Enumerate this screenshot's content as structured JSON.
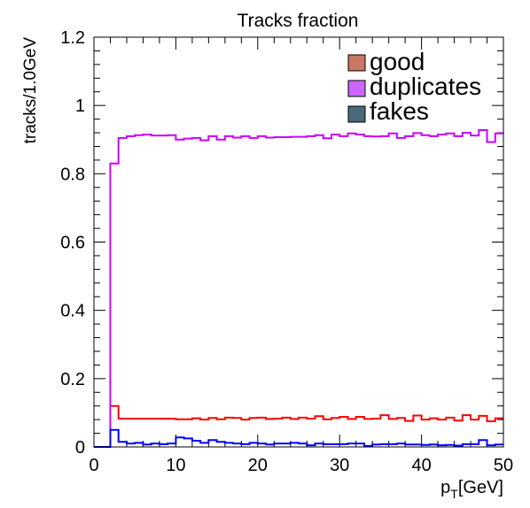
{
  "chart_data": {
    "type": "line",
    "title": "Tracks fraction",
    "xlabel_main": "p",
    "xlabel_sub": "T",
    "xlabel_unit": "[GeV]",
    "ylabel": "tracks/1.0GeV",
    "xlim": [
      0,
      50
    ],
    "ylim": [
      0,
      1.2
    ],
    "xticks": [
      0,
      10,
      20,
      30,
      40,
      50
    ],
    "xtick_labels": [
      "0",
      "10",
      "20",
      "30",
      "40",
      "50"
    ],
    "yticks": [
      0,
      0.2,
      0.4,
      0.6,
      0.8,
      1,
      1.2
    ],
    "ytick_labels": [
      "0",
      "0.2",
      "0.4",
      "0.6",
      "0.8",
      "1",
      "1.2"
    ],
    "bin_edges": [
      0,
      1,
      2,
      3,
      4,
      5,
      6,
      7,
      8,
      9,
      10,
      11,
      12,
      13,
      14,
      15,
      16,
      17,
      18,
      19,
      20,
      21,
      22,
      23,
      24,
      25,
      26,
      27,
      28,
      29,
      30,
      31,
      32,
      33,
      34,
      35,
      36,
      37,
      38,
      39,
      40,
      41,
      42,
      43,
      44,
      45,
      46,
      47,
      48,
      49,
      50
    ],
    "grid": false,
    "legend_position": "top-right",
    "series": [
      {
        "name": "good",
        "color": "#ff0000",
        "values": [
          0,
          0,
          0.12,
          0.083,
          0.083,
          0.083,
          0.083,
          0.083,
          0.083,
          0.083,
          0.081,
          0.081,
          0.084,
          0.08,
          0.085,
          0.081,
          0.086,
          0.085,
          0.08,
          0.085,
          0.086,
          0.082,
          0.083,
          0.086,
          0.082,
          0.086,
          0.083,
          0.09,
          0.081,
          0.085,
          0.088,
          0.082,
          0.088,
          0.082,
          0.083,
          0.093,
          0.082,
          0.085,
          0.076,
          0.092,
          0.08,
          0.084,
          0.08,
          0.086,
          0.077,
          0.093,
          0.08,
          0.091,
          0.075,
          0.084,
          0.078
        ]
      },
      {
        "name": "duplicates",
        "color": "#cc00ff",
        "values": [
          0,
          0,
          0.83,
          0.905,
          0.91,
          0.913,
          0.915,
          0.912,
          0.912,
          0.913,
          0.9,
          0.903,
          0.905,
          0.898,
          0.91,
          0.9,
          0.91,
          0.906,
          0.91,
          0.905,
          0.91,
          0.906,
          0.907,
          0.907,
          0.908,
          0.908,
          0.91,
          0.913,
          0.904,
          0.915,
          0.91,
          0.918,
          0.915,
          0.91,
          0.909,
          0.91,
          0.918,
          0.905,
          0.91,
          0.919,
          0.913,
          0.91,
          0.915,
          0.918,
          0.91,
          0.92,
          0.912,
          0.928,
          0.893,
          0.918,
          0.915
        ]
      },
      {
        "name": "fakes",
        "color": "#0000ff",
        "values": [
          0,
          0,
          0.05,
          0.015,
          0.01,
          0.012,
          0.007,
          0.01,
          0.008,
          0.01,
          0.028,
          0.025,
          0.018,
          0.012,
          0.02,
          0.015,
          0.012,
          0.01,
          0.008,
          0.012,
          0.01,
          0.007,
          0.01,
          0.01,
          0.012,
          0.01,
          0.005,
          0.01,
          0.008,
          0.008,
          0.008,
          0.01,
          0.01,
          0.003,
          0.007,
          0.008,
          0.008,
          0.01,
          0.007,
          0.007,
          0.006,
          0.007,
          0.005,
          0.006,
          0.004,
          0.008,
          0.008,
          0.02,
          0.005,
          0.007,
          0.006
        ]
      }
    ]
  }
}
